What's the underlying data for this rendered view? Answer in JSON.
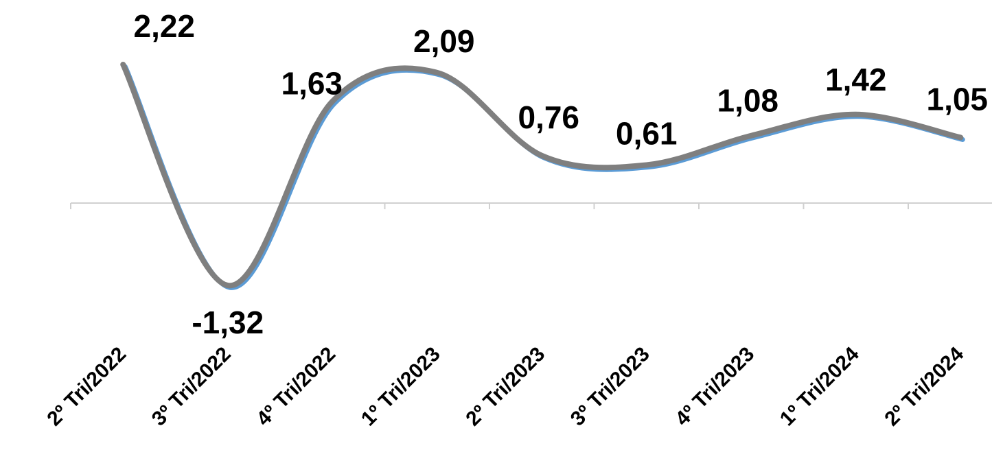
{
  "chart_data": {
    "type": "line",
    "categories": [
      "2º Tri/2022",
      "3º Tri/2022",
      "4º Tri/2022",
      "1º Tri/2023",
      "2º Tri/2023",
      "3º Tri/2023",
      "4º Tri/2023",
      "1º Tri/2024",
      "2º Tri/2024"
    ],
    "series": [
      {
        "values": [
          2.22,
          -1.32,
          1.63,
          2.09,
          0.76,
          0.61,
          1.08,
          1.42,
          1.05
        ],
        "labels": [
          "2,22",
          "-1,32",
          "1,63",
          "2,09",
          "0,76",
          "0,61",
          "1,08",
          "1,42",
          "1,05"
        ]
      }
    ],
    "smooth": true,
    "grid": false,
    "legend": "none",
    "colors": {
      "line": "#7f7f7f",
      "line_shadow": "#5b9bd5",
      "axis": "#d0d0d0"
    }
  }
}
